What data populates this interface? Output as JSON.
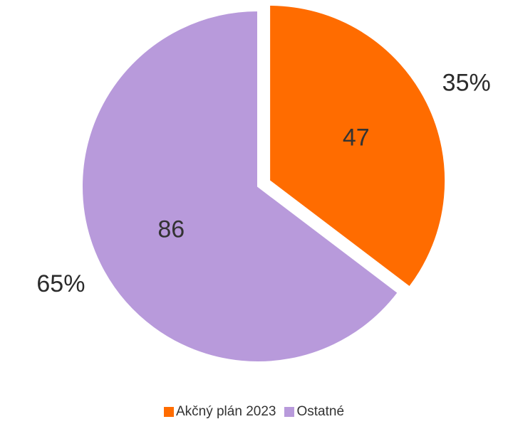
{
  "chart_data": {
    "type": "pie",
    "series": [
      {
        "name": "Akčný plán 2023",
        "value": 47,
        "percent_label": "35%",
        "color": "#FF6C00"
      },
      {
        "name": "Ostatné",
        "value": 86,
        "percent_label": "65%",
        "color": "#B89ADB"
      }
    ],
    "exploded_slice": "Akčný plán 2023",
    "legend_position": "bottom"
  }
}
